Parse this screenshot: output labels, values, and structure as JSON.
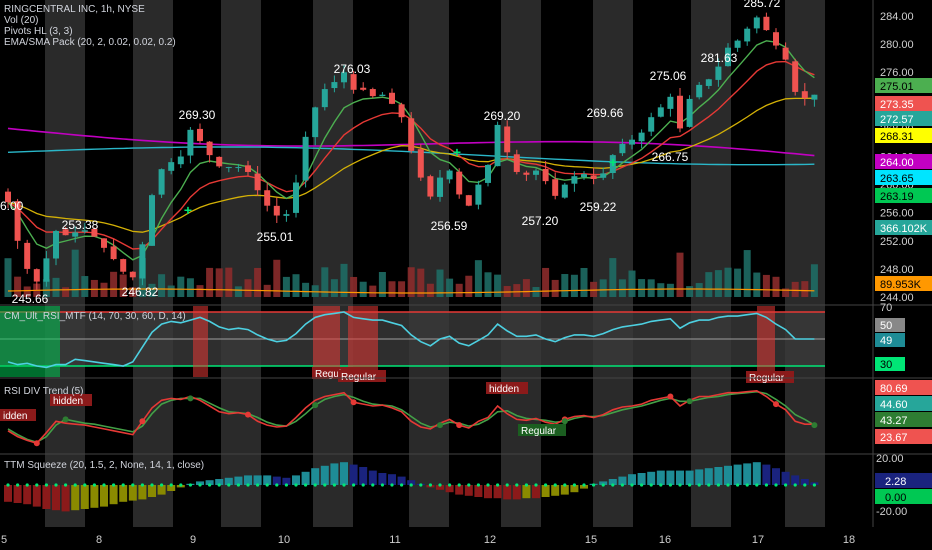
{
  "symbol": {
    "title": "RINGCENTRAL INC, 1h, NYSE",
    "indicators": [
      "Vol (20)",
      "Pivots HL (3, 3)",
      "EMA/SMA Pack (20, 2, 0.02, 0.02, 0.2)"
    ]
  },
  "panes": {
    "rsi_mtf": "CM_Ult_RSI_MTF (14, 70, 30, 60, D, 14)",
    "rsi_div": "RSI DIV Trend (5)",
    "squeeze": "TTM Squeeze (20, 1.5, 2, None, 14, 1, close)"
  },
  "colors": {
    "up": "#26a69a",
    "down": "#ef5350",
    "ema_fast": "#4caf50",
    "ema_mid": "#e53935",
    "sma_yellow": "#d4b106",
    "magenta": "#c200c2",
    "cyan": "#2ab7c9",
    "rsi_line": "#4dd0e1"
  },
  "chart_data": [
    {
      "type": "candlestick",
      "pane": "price",
      "ylim": [
        244,
        286
      ],
      "y_ticks": [
        244,
        248,
        252,
        256,
        260,
        264,
        268,
        272,
        276,
        280,
        284
      ],
      "x_tick_labels": [
        "5",
        "8",
        "9",
        "10",
        "11",
        "12",
        "15",
        "16",
        "17",
        "18"
      ],
      "pivot_labels": [
        "6.00",
        "245.66",
        "253.38",
        "246.82",
        "269.30",
        "255.01",
        "276.03",
        "256.59",
        "269.20",
        "257.20",
        "259.22",
        "269.66",
        "266.75",
        "275.06",
        "281.63",
        "285.72"
      ],
      "price_labels": [
        {
          "text": "275.01",
          "color": "#4caf50"
        },
        {
          "text": "273.35",
          "color": "#ef5350"
        },
        {
          "text": "272.57",
          "color": "#26a69a"
        },
        {
          "text": "268.31",
          "color": "#ffff00"
        },
        {
          "text": "264.00",
          "color": "#c200c2"
        },
        {
          "text": "263.65",
          "color": "#00e5ff"
        },
        {
          "text": "263.19",
          "color": "#00c853"
        },
        {
          "text": "366.102K",
          "color": "#26a69a"
        },
        {
          "text": "89.953K",
          "color": "#ff9800"
        }
      ],
      "close": [
        257.5,
        252.0,
        248.0,
        246.2,
        249.5,
        253.4,
        252.8,
        253.2,
        253.5,
        252.6,
        251.0,
        249.4,
        247.6,
        246.8,
        251.5,
        258.5,
        262.2,
        263.2,
        264.0,
        267.8,
        266.2,
        264.2,
        262.6,
        262.5,
        262.5,
        261.8,
        259.2,
        257.0,
        255.6,
        255.8,
        260.3,
        266.8,
        271.0,
        273.6,
        274.6,
        276.0,
        273.5,
        273.5,
        272.6,
        272.8,
        271.5,
        269.6,
        264.8,
        261.0,
        258.3,
        261.0,
        262.0,
        258.6,
        257.0,
        260.0,
        262.8,
        268.5,
        264.6,
        261.8,
        261.4,
        262.0,
        260.5,
        258.4,
        260.0,
        261.2,
        261.5,
        260.8,
        261.6,
        264.2,
        265.8,
        266.4,
        267.4,
        269.6,
        271.0,
        272.5,
        268.0,
        272.2,
        274.2,
        275.0,
        276.8,
        279.5,
        280.5,
        282.2,
        283.8,
        282.0,
        279.8,
        277.8,
        273.2,
        272.3,
        272.8
      ],
      "volume_unit": "K",
      "sma_yellow_end": 268.31,
      "magenta_end": 264.0,
      "cyan_end": 263.65,
      "ema_fast_end": 275.01,
      "ema_mid_end": 273.35
    },
    {
      "type": "line",
      "pane": "rsi_mtf",
      "ylim": [
        30,
        70
      ],
      "levels": [
        30,
        50,
        70
      ],
      "y_ticks": [
        "70",
        "50",
        "30"
      ],
      "current": "49",
      "values": [
        33,
        31,
        32,
        30,
        29,
        31,
        31,
        35,
        34,
        33,
        32,
        31,
        30,
        33,
        44,
        55,
        61,
        63,
        62,
        64,
        66,
        63,
        59,
        57,
        58,
        57,
        53,
        50,
        48,
        49,
        54,
        61,
        66,
        68,
        69,
        70,
        66,
        65,
        64,
        64,
        62,
        60,
        53,
        48,
        45,
        50,
        52,
        47,
        45,
        49,
        53,
        61,
        56,
        52,
        52,
        53,
        50,
        48,
        51,
        53,
        53,
        52,
        54,
        57,
        59,
        60,
        61,
        63,
        64,
        65,
        58,
        62,
        64,
        64,
        66,
        67,
        67,
        68,
        69,
        66,
        61,
        57,
        50,
        50,
        50
      ]
    },
    {
      "type": "line",
      "pane": "rsi_div",
      "series": [
        {
          "name": "",
          "values": [
            38,
            32,
            28,
            25,
            36,
            48,
            46,
            45,
            44,
            42,
            40,
            38,
            36,
            34,
            48,
            62,
            70,
            72,
            71,
            74,
            70,
            64,
            58,
            56,
            57,
            55,
            48,
            44,
            42,
            43,
            52,
            62,
            70,
            74,
            76,
            78,
            68,
            66,
            64,
            65,
            62,
            58,
            48,
            42,
            40,
            46,
            50,
            44,
            41,
            48,
            52,
            64,
            56,
            50,
            49,
            51,
            47,
            45,
            50,
            53,
            54,
            52,
            55,
            60,
            63,
            64,
            66,
            70,
            72,
            74,
            64,
            70,
            74,
            74,
            76,
            78,
            78,
            79,
            80,
            74,
            66,
            60,
            48,
            45,
            45
          ]
        },
        {
          "name": "",
          "values": [
            40,
            34,
            29,
            26,
            32,
            44,
            50,
            48,
            46,
            45,
            43,
            41,
            39,
            37,
            43,
            56,
            66,
            70,
            72,
            72,
            72,
            67,
            62,
            58,
            57,
            56,
            52,
            47,
            44,
            43,
            48,
            56,
            65,
            71,
            74,
            76,
            73,
            69,
            66,
            65,
            64,
            60,
            53,
            46,
            42,
            44,
            47,
            46,
            43,
            45,
            50,
            58,
            59,
            54,
            51,
            50,
            49,
            47,
            48,
            51,
            53,
            53,
            54,
            57,
            60,
            62,
            64,
            67,
            70,
            72,
            69,
            69,
            71,
            73,
            74,
            76,
            77,
            78,
            79,
            77,
            71,
            64,
            55,
            50,
            44
          ]
        }
      ],
      "price_labels": [
        {
          "text": "80.69",
          "color": "#ef5350"
        },
        {
          "text": "44.60",
          "color": "#26a69a"
        },
        {
          "text": "43.27",
          "color": "#2e7d32"
        },
        {
          "text": "23.67",
          "color": "#ef5350"
        }
      ],
      "annotations": [
        "idden",
        "hidden",
        "Regular",
        "Regular",
        "hidden",
        "Regular",
        "Regular"
      ]
    },
    {
      "type": "bar",
      "pane": "squeeze",
      "ylim": [
        -25,
        25
      ],
      "y_ticks": [
        "20.00",
        "-20.00"
      ],
      "price_labels": [
        {
          "text": "2.28",
          "color": "#1a237e"
        },
        {
          "text": "0.00",
          "color": "#00c853"
        }
      ],
      "values": [
        -14,
        -15,
        -16,
        -18,
        -20,
        -21,
        -22,
        -21,
        -20,
        -19,
        -18,
        -16,
        -14,
        -13,
        -12,
        -10,
        -8,
        -5,
        -2,
        1,
        3,
        4,
        5,
        6,
        7,
        8,
        8,
        8,
        7,
        6,
        8,
        11,
        14,
        16,
        18,
        19,
        17,
        15,
        12,
        10,
        9,
        7,
        4,
        1,
        -2,
        -4,
        -6,
        -8,
        -9,
        -10,
        -11,
        -11,
        -12,
        -12,
        -11,
        -11,
        -10,
        -9,
        -8,
        -6,
        -3,
        1,
        3,
        5,
        7,
        9,
        10,
        11,
        12,
        12,
        12,
        12,
        13,
        14,
        15,
        16,
        17,
        18,
        19,
        17,
        14,
        11,
        8,
        5,
        2.28
      ]
    }
  ]
}
